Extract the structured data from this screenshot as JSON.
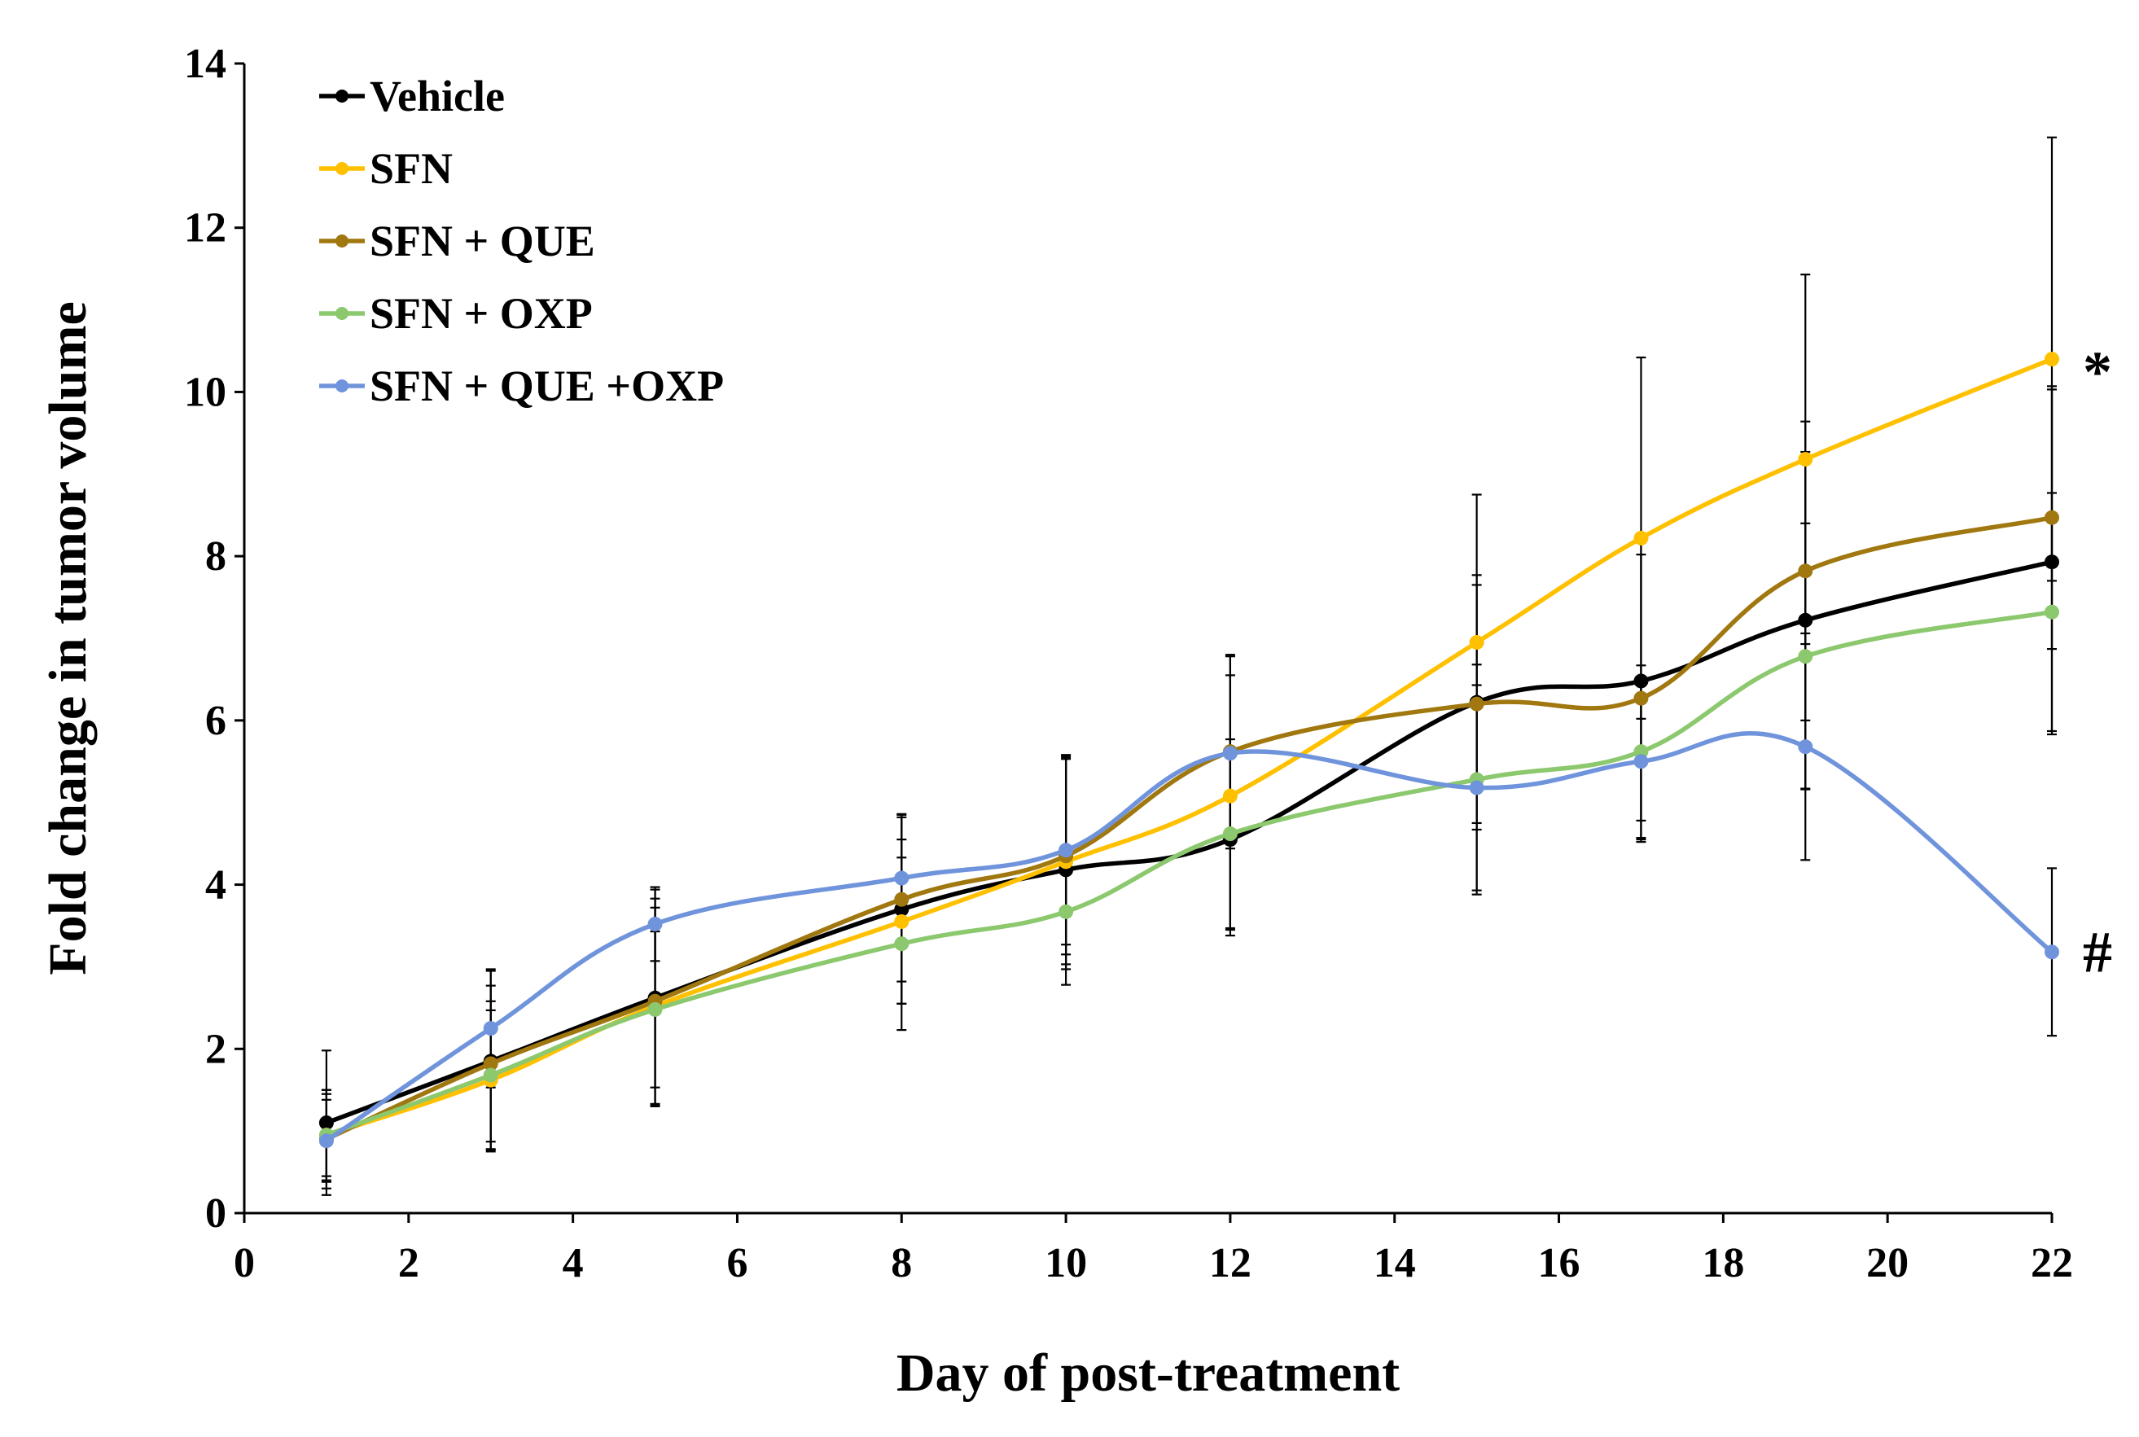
{
  "chart_data": {
    "type": "line",
    "title": "",
    "xlabel": "Day of post-treatment",
    "ylabel": "Fold change in tumor volume",
    "xlim": [
      0,
      22
    ],
    "ylim": [
      0,
      14
    ],
    "xticks": [
      0,
      2,
      4,
      6,
      8,
      10,
      12,
      14,
      16,
      18,
      20,
      22
    ],
    "yticks": [
      0,
      2,
      4,
      6,
      8,
      10,
      12,
      14
    ],
    "grid": false,
    "legend_position": "top-left",
    "x": [
      1,
      3,
      5,
      8,
      10,
      12,
      15,
      17,
      19,
      22
    ],
    "series": [
      {
        "name": "Vehicle",
        "color": "#000000",
        "values": [
          1.1,
          1.85,
          2.62,
          3.7,
          4.18,
          4.55,
          6.22,
          6.48,
          7.22,
          7.93
        ],
        "errors": [
          0.88,
          1.1,
          1.32,
          1.15,
          1.4,
          1.1,
          1.55,
          1.7,
          2.05,
          2.1
        ]
      },
      {
        "name": "SFN",
        "color": "#FFC000",
        "values": [
          0.95,
          1.62,
          2.52,
          3.55,
          4.28,
          5.08,
          6.95,
          8.22,
          9.18,
          10.4
        ],
        "errors": [
          0.55,
          0.85,
          1.2,
          1.0,
          1.25,
          1.7,
          1.8,
          2.2,
          2.25,
          2.7
        ]
      },
      {
        "name": "SFN + QUE",
        "color": "#A0780F",
        "values": [
          0.9,
          1.82,
          2.58,
          3.82,
          4.35,
          5.62,
          6.2,
          6.27,
          7.82,
          8.47
        ],
        "errors": [
          0.6,
          0.95,
          1.25,
          1.0,
          1.2,
          1.18,
          1.45,
          1.75,
          1.82,
          1.6
        ]
      },
      {
        "name": "SFN + OXP",
        "color": "#8CC86E",
        "values": [
          0.95,
          1.68,
          2.48,
          3.28,
          3.67,
          4.62,
          5.28,
          5.62,
          6.78,
          7.32
        ],
        "errors": [
          0.5,
          0.9,
          0.95,
          1.05,
          0.7,
          1.15,
          1.4,
          1.05,
          1.62,
          1.45
        ]
      },
      {
        "name": "SFN + QUE +OXP",
        "color": "#7094DC",
        "values": [
          0.88,
          2.25,
          3.52,
          4.08,
          4.42,
          5.6,
          5.18,
          5.5,
          5.68,
          3.18
        ],
        "errors": [
          0.5,
          0.72,
          0.45,
          0.78,
          1.15,
          0.95,
          1.25,
          0.95,
          1.38,
          1.02
        ]
      }
    ],
    "annotations": [
      {
        "text": "*",
        "x": 22,
        "y": 10.4,
        "series": "SFN"
      },
      {
        "text": "#",
        "x": 22,
        "y": 3.18,
        "series": "SFN + QUE +OXP"
      }
    ]
  }
}
